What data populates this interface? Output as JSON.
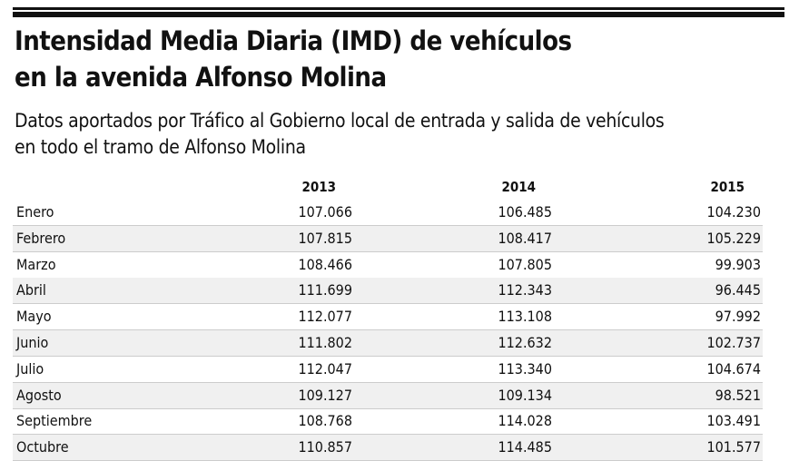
{
  "header": {
    "title": [
      "Intensidad Media Diaria (IMD) de vehículos",
      "en la avenida Alfonso Molina"
    ],
    "subtitle": [
      "Datos aportados por Tráfico al Gobierno local de entrada y salida de vehículos",
      "en todo el tramo de Alfonso Molina"
    ]
  },
  "table": {
    "columns": [
      "2013",
      "2014",
      "2015"
    ],
    "rows": [
      [
        "Enero",
        "107.066",
        "106.485",
        "104.230"
      ],
      [
        "Febrero",
        "107.815",
        "108.417",
        "105.229"
      ],
      [
        "Marzo",
        "108.466",
        "107.805",
        "99.903"
      ],
      [
        "Abril",
        "111.699",
        "112.343",
        "96.445"
      ],
      [
        "Mayo",
        "112.077",
        "113.108",
        "97.992"
      ],
      [
        "Junio",
        "111.802",
        "112.632",
        "102.737"
      ],
      [
        "Julio",
        "112.047",
        "113.340",
        "104.674"
      ],
      [
        "Agosto",
        "109.127",
        "109.134",
        "98.521"
      ],
      [
        "Septiembre",
        "108.768",
        "114.028",
        "103.491"
      ],
      [
        "Octubre",
        "110.857",
        "114.485",
        "101.577"
      ]
    ]
  }
}
